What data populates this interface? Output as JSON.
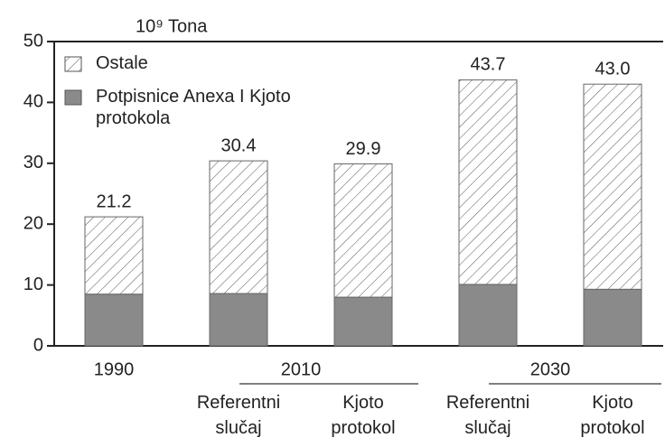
{
  "chart_data": {
    "type": "stacked-bar",
    "y_label": "10⁹ Tona",
    "categories": [
      null,
      "Referentni slučaj",
      "Kjoto protokol",
      "Referentni slučaj",
      "Kjoto protokol"
    ],
    "groups": [
      {
        "label": "1990",
        "size": 1
      },
      {
        "label": "2010",
        "size": 2
      },
      {
        "label": "2030",
        "size": 2
      }
    ],
    "series": [
      {
        "name": "Potpisnice Anexa I Kjoto protokola",
        "color": "#8a8a8a",
        "values": [
          8.5,
          8.6,
          8.0,
          10.1,
          9.3
        ]
      },
      {
        "name": "Ostale",
        "color": "#ffffff",
        "hatch": true,
        "values": [
          12.7,
          21.8,
          21.9,
          33.6,
          33.7
        ]
      }
    ],
    "totals": [
      21.2,
      30.4,
      29.9,
      43.7,
      43.0
    ],
    "value_labels": [
      "21.2",
      "30.4",
      "29.9",
      "43.7",
      "43.0"
    ],
    "ylim": [
      0,
      50
    ],
    "yticks": [
      0,
      10,
      20,
      30,
      40,
      50
    ],
    "legend": "top-left"
  }
}
